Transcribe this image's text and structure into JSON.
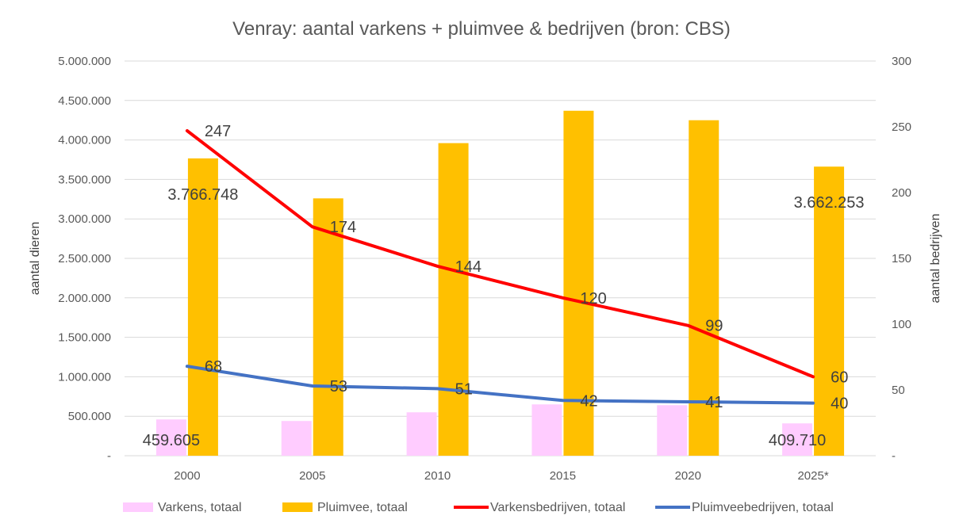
{
  "chart_data": {
    "type": "bar",
    "title": "Venray:  aantal varkens + pluimvee & bedrijven (bron: CBS)",
    "categories": [
      "2000",
      "2005",
      "2010",
      "2015",
      "2020",
      "2025*"
    ],
    "y_left": {
      "label": "aantal dieren",
      "ylim": [
        0,
        5000000
      ],
      "ticks": [
        "-",
        "500.000",
        "1.000.000",
        "1.500.000",
        "2.000.000",
        "2.500.000",
        "3.000.000",
        "3.500.000",
        "4.000.000",
        "4.500.000",
        "5.000.000"
      ]
    },
    "y_right": {
      "label": "aantal bedrijven",
      "ylim": [
        0,
        300
      ],
      "ticks": [
        "-",
        "50",
        "100",
        "150",
        "200",
        "250",
        "300"
      ]
    },
    "grid": true,
    "legend_position": "bottom",
    "series": [
      {
        "name": "Varkens, totaal",
        "kind": "bar",
        "axis": "left",
        "color": "#ffccff",
        "values": [
          459605,
          440000,
          550000,
          650000,
          640000,
          409710
        ],
        "data_labels": [
          "459.605",
          "",
          "",
          "",
          "",
          "409.710"
        ]
      },
      {
        "name": "Pluimvee, totaal",
        "kind": "bar",
        "axis": "left",
        "color": "#ffc000",
        "values": [
          3766748,
          3260000,
          3960000,
          4370000,
          4250000,
          3662253
        ],
        "data_labels": [
          "3.766.748",
          "",
          "",
          "",
          "",
          "3.662.253"
        ]
      },
      {
        "name": "Varkensbedrijven, totaal",
        "kind": "line",
        "axis": "right",
        "color": "#ff0000",
        "values": [
          247,
          174,
          144,
          120,
          99,
          60
        ],
        "data_labels": [
          "247",
          "174",
          "144",
          "120",
          "99",
          "60"
        ]
      },
      {
        "name": "Pluimveebedrijven, totaal",
        "kind": "line",
        "axis": "right",
        "color": "#4472c4",
        "values": [
          68,
          53,
          51,
          42,
          41,
          40
        ],
        "data_labels": [
          "68",
          "53",
          "51",
          "42",
          "41",
          "40"
        ]
      }
    ]
  }
}
